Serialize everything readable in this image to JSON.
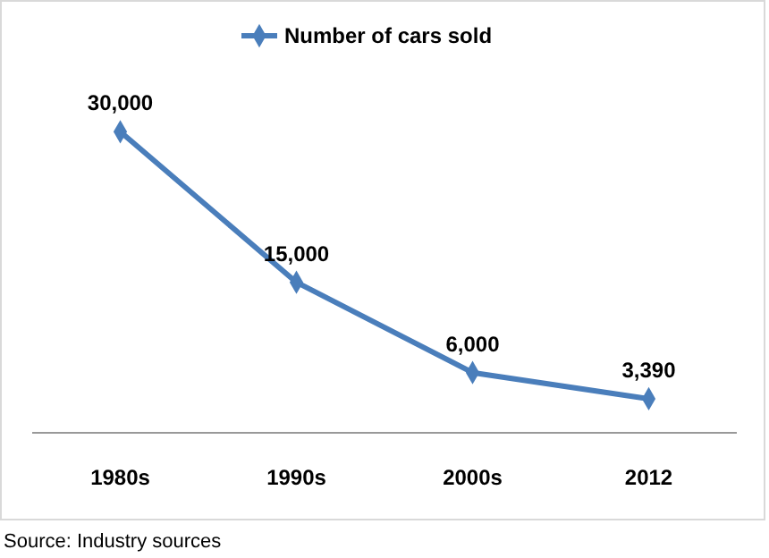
{
  "chart_data": {
    "type": "line",
    "categories": [
      "1980s",
      "1990s",
      "2000s",
      "2012"
    ],
    "series": [
      {
        "name": "Number of cars sold",
        "color": "#4a7ebb",
        "values": [
          30000,
          15000,
          6000,
          3390
        ],
        "value_labels": [
          "30,000",
          "15,000",
          "6,000",
          "3,390"
        ]
      }
    ],
    "legend": "top",
    "marker": "diamond",
    "line_style": "solid",
    "tick_labels": "x",
    "annotations": [
      "Source: Industry sources"
    ]
  }
}
